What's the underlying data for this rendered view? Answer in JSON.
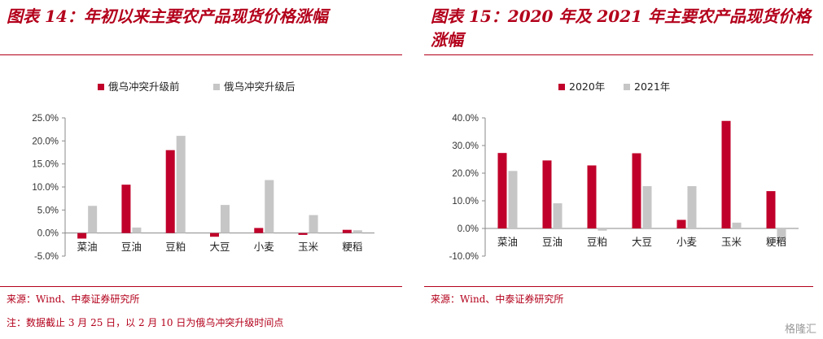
{
  "colors": {
    "accent": "#b3001b",
    "series1": "#c0002a",
    "series2": "#c6c6c6"
  },
  "left": {
    "title": "图表 14：年初以来主要农产品现货价格涨幅",
    "source": "来源：Wind、中泰证券研究所",
    "note": "注：数据截止 3 月 25 日，以 2 月 10 日为俄乌冲突升级时间点"
  },
  "right": {
    "title": "图表 15：2020 年及 2021 年主要农产品现货价格涨幅",
    "source": "来源：Wind、中泰证券研究所"
  },
  "watermark": "格隆汇",
  "chart_data": [
    {
      "type": "bar",
      "categories": [
        "菜油",
        "豆油",
        "豆粕",
        "大豆",
        "小麦",
        "玉米",
        "粳稻"
      ],
      "series": [
        {
          "name": "俄乌冲突升级前",
          "values": [
            -1.2,
            10.5,
            18.0,
            -0.8,
            1.1,
            -0.4,
            0.7
          ]
        },
        {
          "name": "俄乌冲突升级后",
          "values": [
            5.9,
            1.2,
            21.1,
            6.1,
            11.5,
            3.9,
            0.6
          ]
        }
      ],
      "yticks": [
        "-5.0%",
        "0.0%",
        "5.0%",
        "10.0%",
        "15.0%",
        "20.0%",
        "25.0%"
      ],
      "ylim": [
        -5,
        25
      ],
      "legend": "top-center",
      "grid": false
    },
    {
      "type": "bar",
      "categories": [
        "菜油",
        "豆油",
        "豆粕",
        "大豆",
        "小麦",
        "玉米",
        "粳稻"
      ],
      "series": [
        {
          "name": "2020年",
          "values": [
            27.3,
            24.6,
            22.8,
            27.2,
            3.1,
            38.9,
            13.5
          ]
        },
        {
          "name": "2021年",
          "values": [
            20.8,
            9.1,
            -0.8,
            15.3,
            15.3,
            2.1,
            -5.0
          ]
        }
      ],
      "yticks": [
        "-10.0%",
        "0.0%",
        "10.0%",
        "20.0%",
        "30.0%",
        "40.0%"
      ],
      "ylim": [
        -10,
        40
      ],
      "legend": "top-center",
      "grid": false
    }
  ]
}
